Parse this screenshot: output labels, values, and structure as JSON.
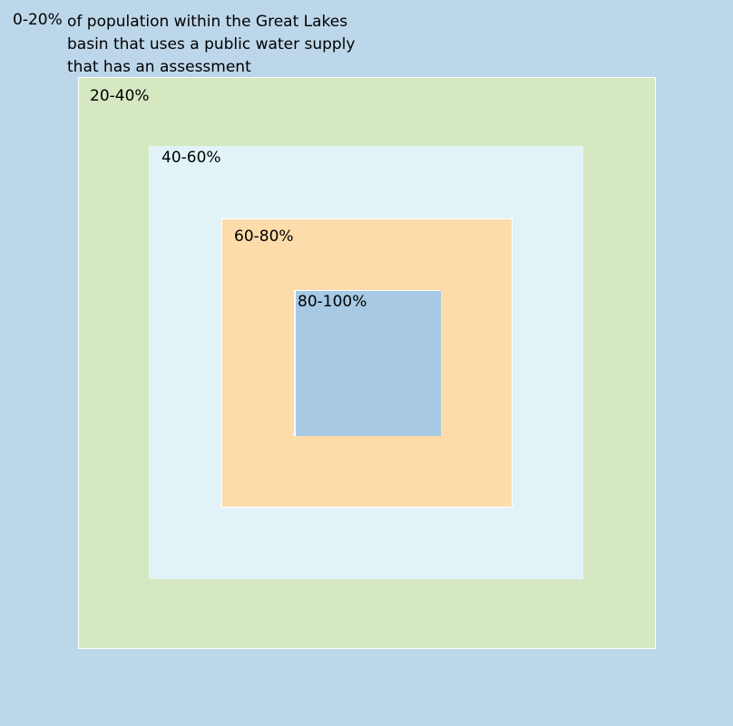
{
  "diagram": {
    "description": "of population within the Great Lakes basin that uses a public water supply that has an assessment",
    "bands": [
      {
        "label": "0-20%",
        "color": "#bdd7ea"
      },
      {
        "label": "20-40%",
        "color": "#d5e8c2"
      },
      {
        "label": "40-60%",
        "color": "#e2f3f7"
      },
      {
        "label": "60-80%",
        "color": "#fddcaa"
      },
      {
        "label": "80-100%",
        "color": "#a7c9e3"
      }
    ]
  }
}
